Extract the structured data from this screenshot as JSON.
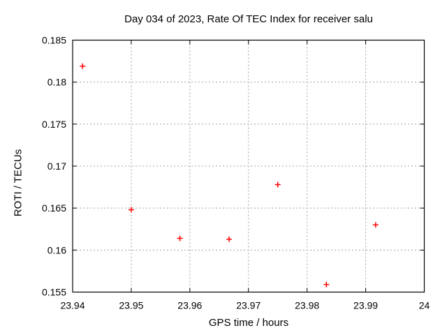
{
  "title": "Day 034 of 2023, Rate Of TEC Index for receiver salu",
  "chart_data": {
    "type": "scatter",
    "title": "Day 034 of 2023, Rate Of TEC Index for receiver salu",
    "xlabel": "GPS time / hours",
    "ylabel": "ROTI / TECUs",
    "xlim": [
      23.94,
      24
    ],
    "ylim": [
      0.155,
      0.185
    ],
    "xticks": [
      23.94,
      23.95,
      23.96,
      23.97,
      23.98,
      23.99,
      24
    ],
    "xtick_labels": [
      "23.94",
      "23.95",
      "23.96",
      "23.97",
      "23.98",
      "23.99",
      "24"
    ],
    "yticks": [
      0.155,
      0.16,
      0.165,
      0.17,
      0.175,
      0.18,
      0.185
    ],
    "ytick_labels": [
      "0.155",
      "0.16",
      "0.165",
      "0.17",
      "0.175",
      "0.18",
      "0.185"
    ],
    "grid": true,
    "legend_position": "none",
    "marker": "plus",
    "colors": {
      "marker": "#ff0000",
      "grid": "#a0a0a0",
      "border": "#000000",
      "background": "#ffffff"
    },
    "series": [
      {
        "name": "ROTI",
        "points": [
          [
            23.9417,
            0.1819
          ],
          [
            23.95,
            0.1648
          ],
          [
            23.9583,
            0.1614
          ],
          [
            23.9667,
            0.1613
          ],
          [
            23.975,
            0.1678
          ],
          [
            23.9833,
            0.1559
          ],
          [
            23.9917,
            0.163
          ]
        ]
      }
    ]
  }
}
